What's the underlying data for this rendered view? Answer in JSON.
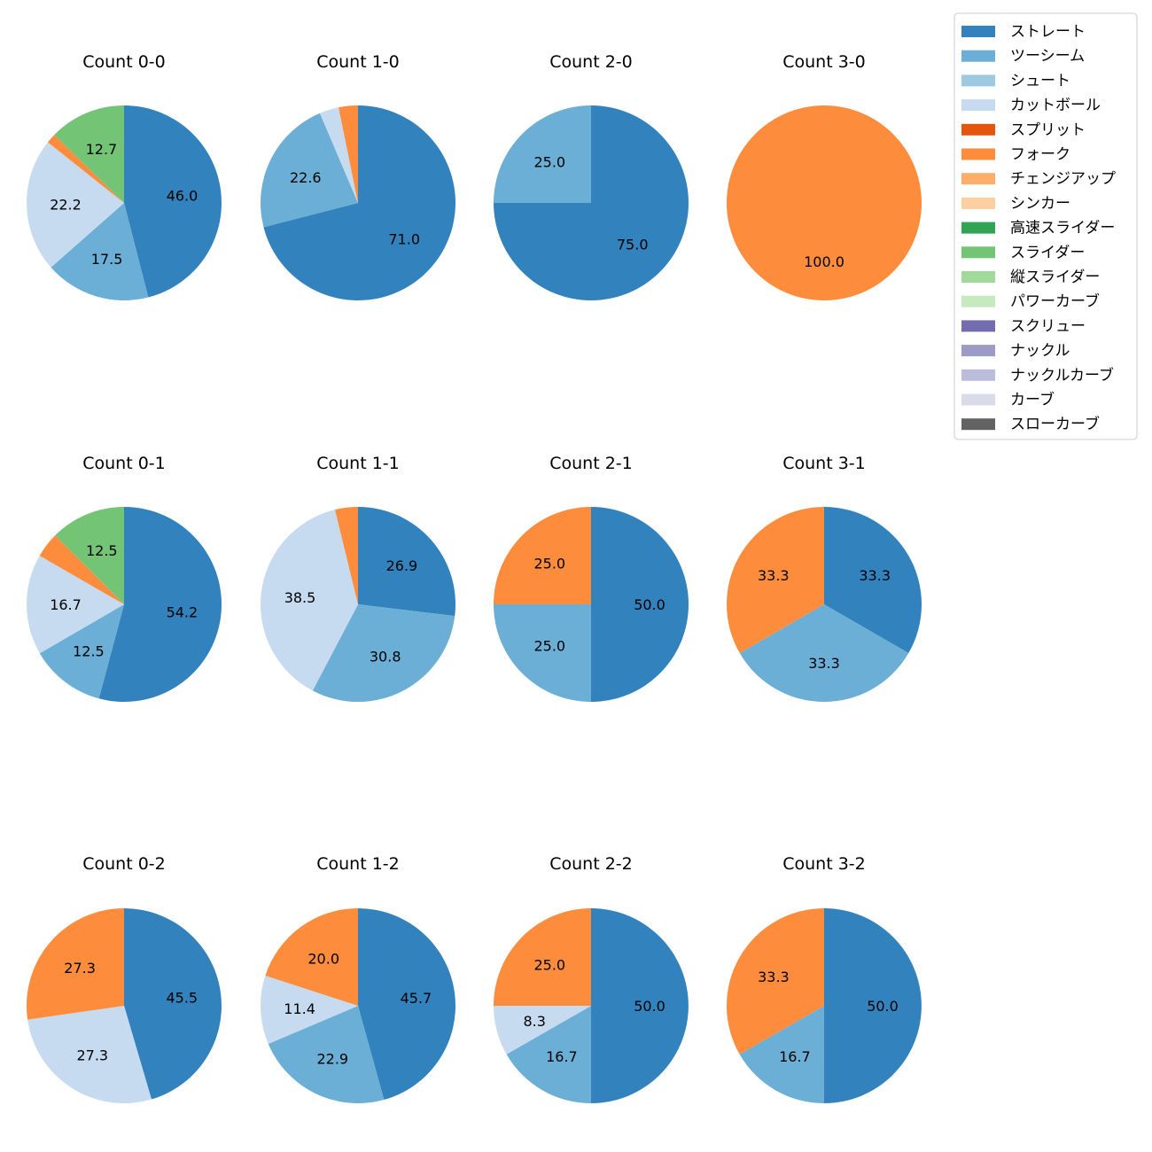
{
  "chart_data": {
    "type": "pie",
    "legend": {
      "placement": "top-right",
      "entries": [
        {
          "name": "ストレート",
          "color": "#3182bd"
        },
        {
          "name": "ツーシーム",
          "color": "#6baed6"
        },
        {
          "name": "シュート",
          "color": "#9ecae1"
        },
        {
          "name": "カットボール",
          "color": "#c6dbef"
        },
        {
          "name": "スプリット",
          "color": "#e6550d"
        },
        {
          "name": "フォーク",
          "color": "#fd8d3c"
        },
        {
          "name": "チェンジアップ",
          "color": "#fdae6b"
        },
        {
          "name": "シンカー",
          "color": "#fdd0a2"
        },
        {
          "name": "高速スライダー",
          "color": "#31a354"
        },
        {
          "name": "スライダー",
          "color": "#74c476"
        },
        {
          "name": "縦スライダー",
          "color": "#a1d99b"
        },
        {
          "name": "パワーカーブ",
          "color": "#c7e9c0"
        },
        {
          "name": "スクリュー",
          "color": "#756bb1"
        },
        {
          "name": "ナックル",
          "color": "#9e9ac8"
        },
        {
          "name": "ナックルカーブ",
          "color": "#bcbddc"
        },
        {
          "name": "カーブ",
          "color": "#dadaeb"
        },
        {
          "name": "スローカーブ",
          "color": "#636363"
        }
      ]
    },
    "pies": [
      {
        "title": "Count 0-0",
        "slices": [
          {
            "pitch": "ストレート",
            "value": 46.0,
            "label": "46.0"
          },
          {
            "pitch": "ツーシーム",
            "value": 17.5,
            "label": "17.5"
          },
          {
            "pitch": "カットボール",
            "value": 22.2,
            "label": "22.2"
          },
          {
            "pitch": "フォーク",
            "value": 1.6,
            "label": ""
          },
          {
            "pitch": "スライダー",
            "value": 12.7,
            "label": "12.7"
          }
        ]
      },
      {
        "title": "Count 1-0",
        "slices": [
          {
            "pitch": "ストレート",
            "value": 71.0,
            "label": "71.0"
          },
          {
            "pitch": "ツーシーム",
            "value": 22.6,
            "label": "22.6"
          },
          {
            "pitch": "カットボール",
            "value": 3.2,
            "label": ""
          },
          {
            "pitch": "フォーク",
            "value": 3.2,
            "label": ""
          }
        ]
      },
      {
        "title": "Count 2-0",
        "slices": [
          {
            "pitch": "ストレート",
            "value": 75.0,
            "label": "75.0"
          },
          {
            "pitch": "ツーシーム",
            "value": 25.0,
            "label": "25.0"
          }
        ]
      },
      {
        "title": "Count 3-0",
        "slices": [
          {
            "pitch": "フォーク",
            "value": 100.0,
            "label": "100.0"
          }
        ]
      },
      {
        "title": "Count 0-1",
        "slices": [
          {
            "pitch": "ストレート",
            "value": 54.2,
            "label": "54.2"
          },
          {
            "pitch": "ツーシーム",
            "value": 12.5,
            "label": "12.5"
          },
          {
            "pitch": "カットボール",
            "value": 16.7,
            "label": "16.7"
          },
          {
            "pitch": "フォーク",
            "value": 4.2,
            "label": ""
          },
          {
            "pitch": "スライダー",
            "value": 12.5,
            "label": "12.5"
          }
        ]
      },
      {
        "title": "Count 1-1",
        "slices": [
          {
            "pitch": "ストレート",
            "value": 26.9,
            "label": "26.9"
          },
          {
            "pitch": "ツーシーム",
            "value": 30.8,
            "label": "30.8"
          },
          {
            "pitch": "カットボール",
            "value": 38.5,
            "label": "38.5"
          },
          {
            "pitch": "フォーク",
            "value": 3.8,
            "label": ""
          }
        ]
      },
      {
        "title": "Count 2-1",
        "slices": [
          {
            "pitch": "ストレート",
            "value": 50.0,
            "label": "50.0"
          },
          {
            "pitch": "ツーシーム",
            "value": 25.0,
            "label": "25.0"
          },
          {
            "pitch": "フォーク",
            "value": 25.0,
            "label": "25.0"
          }
        ]
      },
      {
        "title": "Count 3-1",
        "slices": [
          {
            "pitch": "ストレート",
            "value": 33.3,
            "label": "33.3"
          },
          {
            "pitch": "ツーシーム",
            "value": 33.3,
            "label": "33.3"
          },
          {
            "pitch": "フォーク",
            "value": 33.3,
            "label": "33.3"
          }
        ]
      },
      {
        "title": "Count 0-2",
        "slices": [
          {
            "pitch": "ストレート",
            "value": 45.5,
            "label": "45.5"
          },
          {
            "pitch": "カットボール",
            "value": 27.3,
            "label": "27.3"
          },
          {
            "pitch": "フォーク",
            "value": 27.3,
            "label": "27.3"
          }
        ]
      },
      {
        "title": "Count 1-2",
        "slices": [
          {
            "pitch": "ストレート",
            "value": 45.7,
            "label": "45.7"
          },
          {
            "pitch": "ツーシーム",
            "value": 22.9,
            "label": "22.9"
          },
          {
            "pitch": "カットボール",
            "value": 11.4,
            "label": "11.4"
          },
          {
            "pitch": "フォーク",
            "value": 20.0,
            "label": "20.0"
          }
        ]
      },
      {
        "title": "Count 2-2",
        "slices": [
          {
            "pitch": "ストレート",
            "value": 50.0,
            "label": "50.0"
          },
          {
            "pitch": "ツーシーム",
            "value": 16.7,
            "label": "16.7"
          },
          {
            "pitch": "カットボール",
            "value": 8.3,
            "label": "8.3"
          },
          {
            "pitch": "フォーク",
            "value": 25.0,
            "label": "25.0"
          }
        ]
      },
      {
        "title": "Count 3-2",
        "slices": [
          {
            "pitch": "ストレート",
            "value": 50.0,
            "label": "50.0"
          },
          {
            "pitch": "ツーシーム",
            "value": 16.7,
            "label": "16.7"
          },
          {
            "pitch": "フォーク",
            "value": 33.3,
            "label": "33.3"
          }
        ]
      }
    ]
  }
}
